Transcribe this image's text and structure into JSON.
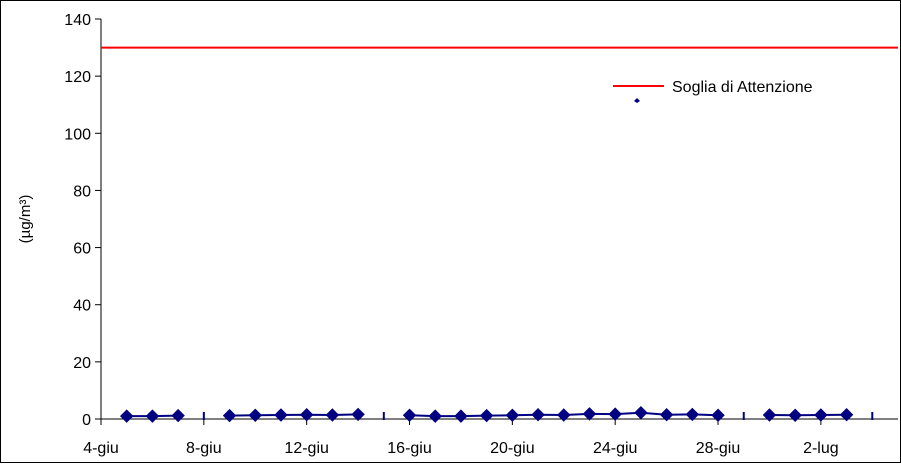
{
  "chart_data": {
    "type": "line",
    "title": "",
    "xlabel": "",
    "ylabel": "(µg/m³)",
    "ylim": [
      0,
      140
    ],
    "y_ticks": [
      "0",
      "20",
      "40",
      "60",
      "80",
      "100",
      "120",
      "140"
    ],
    "x_ticks": [
      "4-giu",
      "8-giu",
      "12-giu",
      "16-giu",
      "20-giu",
      "24-giu",
      "28-giu",
      "2-lug"
    ],
    "x_range": [
      "4-giu",
      "5-lug"
    ],
    "grid": false,
    "legend": "top-right",
    "series": [
      {
        "name": "",
        "color": "#000080",
        "marker": "diamond",
        "x": [
          "5-giu",
          "6-giu",
          "7-giu",
          "8-giu",
          "9-giu",
          "10-giu",
          "11-giu",
          "12-giu",
          "13-giu",
          "14-giu",
          "15-giu",
          "16-giu",
          "17-giu",
          "18-giu",
          "19-giu",
          "20-giu",
          "21-giu",
          "22-giu",
          "23-giu",
          "24-giu",
          "25-giu",
          "26-giu",
          "27-giu",
          "28-giu",
          "29-giu",
          "30-giu",
          "1-lug",
          "2-lug",
          "3-lug",
          "4-lug"
        ],
        "values": [
          1.0,
          1.0,
          1.2,
          null,
          1.2,
          1.3,
          1.4,
          1.5,
          1.4,
          1.6,
          null,
          1.3,
          1.0,
          1.0,
          1.2,
          1.3,
          1.5,
          1.4,
          1.8,
          1.7,
          2.2,
          1.5,
          1.6,
          1.3,
          null,
          1.4,
          1.3,
          1.4,
          1.5,
          null
        ]
      },
      {
        "name": "Soglia di Attenzione",
        "color": "#ff0000",
        "marker": "none",
        "constant": 130
      }
    ]
  }
}
